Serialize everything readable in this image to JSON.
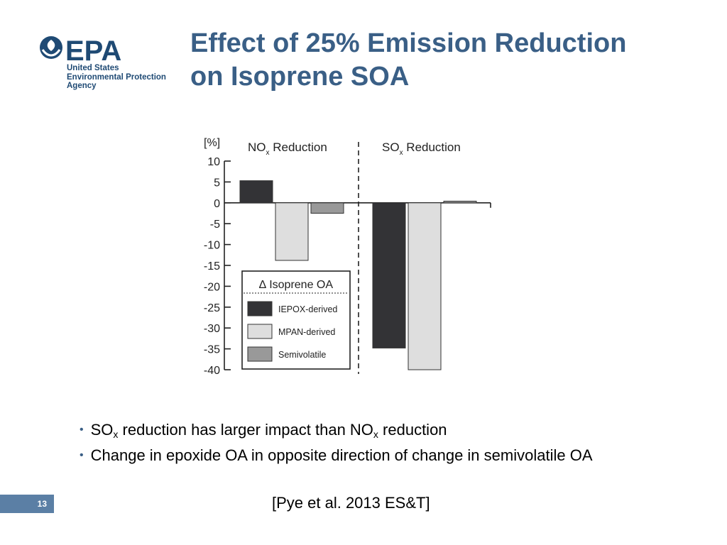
{
  "logo": {
    "wordmark": "EPA",
    "lines": [
      "United States",
      "Environmental Protection",
      "Agency"
    ]
  },
  "title": {
    "line1": "Effect of 25% Emission Reduction",
    "line2": "on Isoprene SOA"
  },
  "bullets": [
    {
      "pre": "SO",
      "sub": "x",
      "mid": " reduction has larger impact than NO",
      "sub2": "x",
      "post": " reduction"
    },
    {
      "text": "Change in epoxide OA in opposite direction of change in semivolatile OA"
    }
  ],
  "citation": "[Pye et al. 2013 ES&T]",
  "page_number": "13",
  "colors": {
    "title": "#3a5f86",
    "iepox": "#333336",
    "mpan": "#dedede",
    "semivolatile": "#999999",
    "page_badge": "#5b7fa5"
  },
  "chart_data": {
    "type": "bar",
    "ylabel": "[%]",
    "ylim": [
      -40,
      10
    ],
    "yticks": [
      10,
      5,
      0,
      -5,
      -10,
      -15,
      -20,
      -25,
      -30,
      -35,
      -40
    ],
    "groups": [
      {
        "label": "NO",
        "label_sub": "x",
        "label_post": " Reduction"
      },
      {
        "label": "SO",
        "label_sub": "x",
        "label_post": " Reduction"
      }
    ],
    "series": [
      {
        "name": "IEPOX-derived",
        "values": [
          5.3,
          -34.8
        ]
      },
      {
        "name": "MPAN-derived",
        "values": [
          -13.8,
          -40
        ]
      },
      {
        "name": "Semivolatile",
        "values": [
          -2.5,
          0.4
        ]
      }
    ],
    "legend": {
      "title": "∆ Isoprene OA",
      "position": "lower-left"
    }
  }
}
